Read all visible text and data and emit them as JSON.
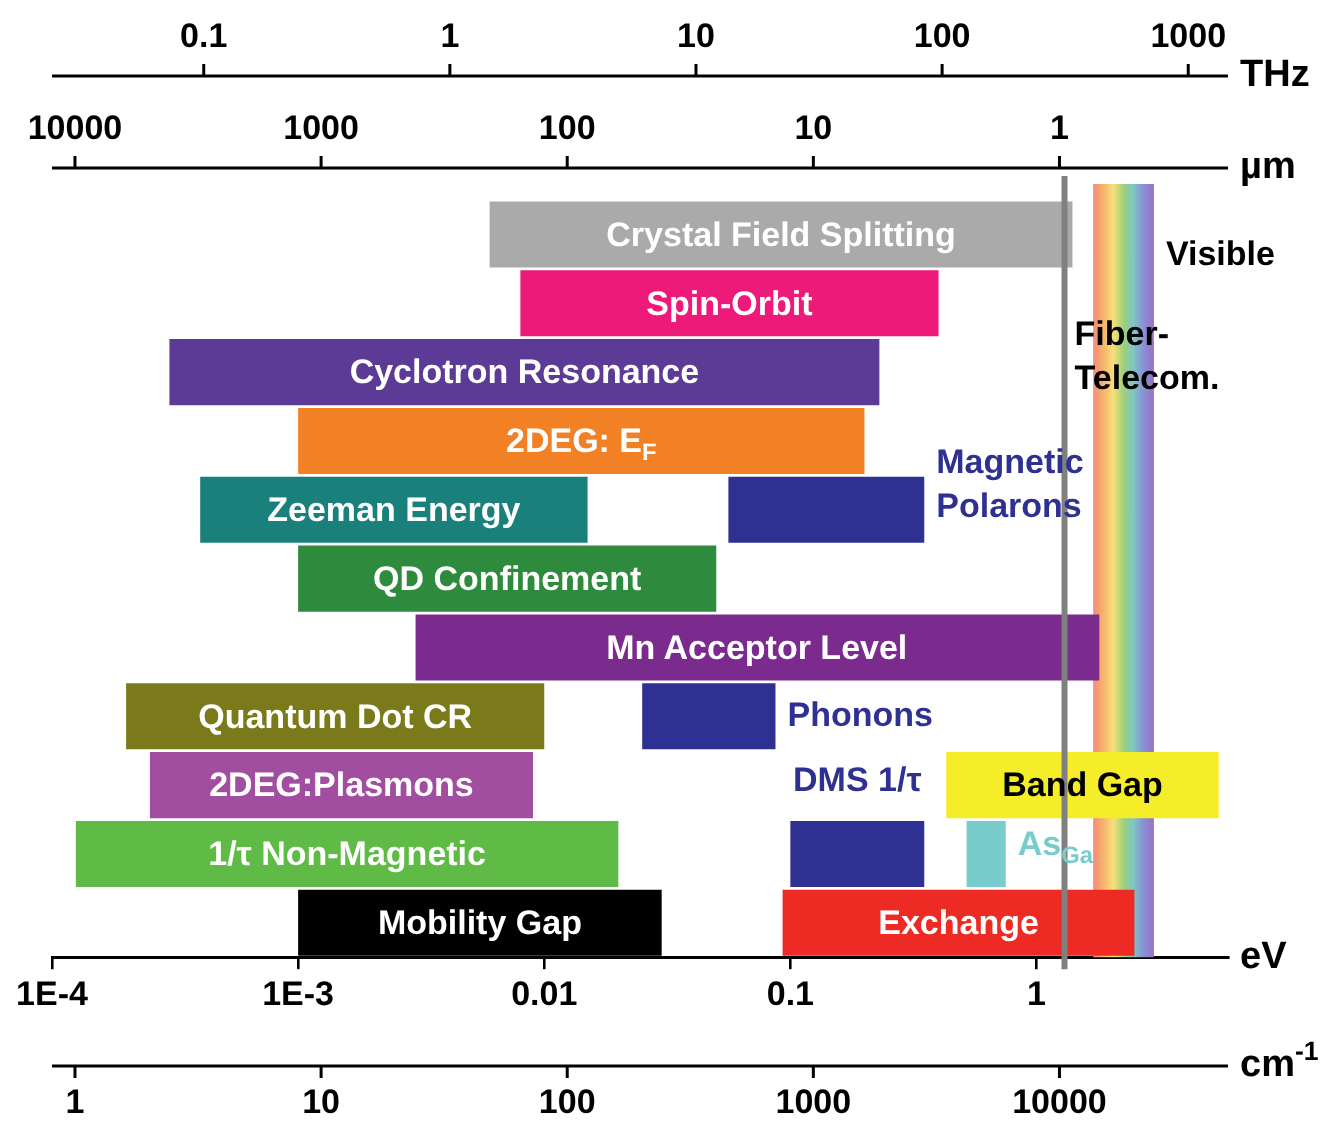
{
  "chart_data": {
    "type": "bar",
    "orientation": "horizontal",
    "log": "x",
    "legend": false,
    "grid": false,
    "tick_labels": "x",
    "categories": [
      null,
      null,
      null,
      null,
      null,
      null,
      null,
      null,
      null,
      null,
      null
    ],
    "xlabel": "eV",
    "xlim": [
      0.0001,
      6
    ],
    "xticks": [
      {
        "value": 0.0001,
        "label": "1E-4"
      },
      {
        "value": 0.001,
        "label": "1E-3"
      },
      0.01,
      0.1,
      1
    ],
    "series": [
      {
        "name": "Crystal Field Splitting",
        "color": "#aaaaaa",
        "base": [
          0.006,
          null,
          null,
          null,
          null,
          null,
          null,
          null,
          null,
          null,
          null
        ],
        "values": [
          1.394,
          null,
          null,
          null,
          null,
          null,
          null,
          null,
          null,
          null,
          null
        ]
      },
      {
        "name": "Spin-Orbit",
        "color": "#ee1a7a",
        "base": [
          null,
          0.008,
          null,
          null,
          null,
          null,
          null,
          null,
          null,
          null,
          null
        ],
        "values": [
          null,
          0.392,
          null,
          null,
          null,
          null,
          null,
          null,
          null,
          null,
          null
        ]
      },
      {
        "name": "Cyclotron Resonance",
        "color": "#5c3b96",
        "base": [
          null,
          null,
          0.0003,
          null,
          null,
          null,
          null,
          null,
          null,
          null,
          null
        ],
        "values": [
          null,
          null,
          0.2297,
          null,
          null,
          null,
          null,
          null,
          null,
          null,
          null
        ]
      },
      {
        "name": "2DEG: E$_{F}$",
        "color": "#f28024",
        "base": [
          null,
          null,
          null,
          0.001,
          null,
          null,
          null,
          null,
          null,
          null,
          null
        ],
        "values": [
          null,
          null,
          null,
          0.199,
          null,
          null,
          null,
          null,
          null,
          null,
          null
        ]
      },
      {
        "name": "Zeeman Energy",
        "color": "#1a807c",
        "base": [
          null,
          null,
          null,
          null,
          0.0004,
          null,
          null,
          null,
          null,
          null,
          null
        ],
        "values": [
          null,
          null,
          null,
          null,
          0.0146,
          null,
          null,
          null,
          null,
          null,
          null
        ]
      },
      {
        "name": "Magnetic Polarons",
        "color": "#2e3192",
        "base": [
          null,
          null,
          null,
          null,
          0.056,
          null,
          null,
          null,
          null,
          null,
          null
        ],
        "values": [
          null,
          null,
          null,
          null,
          0.294,
          null,
          null,
          null,
          null,
          null,
          null
        ]
      },
      {
        "name": "QD Confinement",
        "color": "#2e8b3e",
        "base": [
          null,
          null,
          null,
          null,
          null,
          0.001,
          null,
          null,
          null,
          null,
          null
        ],
        "values": [
          null,
          null,
          null,
          null,
          null,
          0.049,
          null,
          null,
          null,
          null,
          null
        ]
      },
      {
        "name": "Mn Acceptor Level",
        "color": "#7b2b8e",
        "base": [
          null,
          null,
          null,
          null,
          null,
          null,
          0.003,
          null,
          null,
          null,
          null
        ],
        "values": [
          null,
          null,
          null,
          null,
          null,
          null,
          1.797,
          null,
          null,
          null,
          null
        ]
      },
      {
        "name": "Quantum Dot CR",
        "color": "#7b7a1a",
        "base": [
          null,
          null,
          null,
          null,
          null,
          null,
          null,
          0.0002,
          null,
          null,
          null
        ],
        "values": [
          null,
          null,
          null,
          null,
          null,
          null,
          null,
          0.0098,
          null,
          null,
          null
        ]
      },
      {
        "name": "Phonons",
        "color": "#2e3192",
        "base": [
          null,
          null,
          null,
          null,
          null,
          null,
          null,
          0.025,
          null,
          null,
          null
        ],
        "values": [
          null,
          null,
          null,
          null,
          null,
          null,
          null,
          0.062,
          null,
          null,
          null
        ]
      },
      {
        "name": "2DEG:Plasmons",
        "color": "#a24ea0",
        "base": [
          null,
          null,
          null,
          null,
          null,
          null,
          null,
          null,
          0.00025,
          null,
          null
        ],
        "values": [
          null,
          null,
          null,
          null,
          null,
          null,
          null,
          null,
          0.00875,
          null,
          null
        ]
      },
      {
        "name": "Band Gap",
        "color": "#f5ec2a",
        "base": [
          null,
          null,
          null,
          null,
          null,
          null,
          null,
          null,
          0.43,
          null,
          null
        ],
        "values": [
          null,
          null,
          null,
          null,
          null,
          null,
          null,
          null,
          5.07,
          null,
          null
        ]
      },
      {
        "name": "1/τ Non-Magnetic",
        "color": "#5fbb46",
        "base": [
          null,
          null,
          null,
          null,
          null,
          null,
          null,
          null,
          null,
          0.000125,
          null
        ],
        "values": [
          null,
          null,
          null,
          null,
          null,
          null,
          null,
          null,
          null,
          0.019875,
          null
        ]
      },
      {
        "name": "DMS 1/τ",
        "color": "#2e3192",
        "base": [
          null,
          null,
          null,
          null,
          null,
          null,
          null,
          null,
          null,
          0.1,
          null
        ],
        "values": [
          null,
          null,
          null,
          null,
          null,
          null,
          null,
          null,
          null,
          0.25,
          null
        ]
      },
      {
        "name": "As$_{Ga}$",
        "color": "#78cccc",
        "base": [
          null,
          null,
          null,
          null,
          null,
          null,
          null,
          null,
          null,
          0.52,
          null
        ],
        "values": [
          null,
          null,
          null,
          null,
          null,
          null,
          null,
          null,
          null,
          0.23,
          null
        ]
      },
      {
        "name": "Mobility Gap",
        "color": "#000000",
        "base": [
          null,
          null,
          null,
          null,
          null,
          null,
          null,
          null,
          null,
          null,
          0.001
        ],
        "values": [
          null,
          null,
          null,
          null,
          null,
          null,
          null,
          null,
          null,
          null,
          0.029
        ]
      },
      {
        "name": "Exchange",
        "color": "#ed2a24",
        "base": [
          null,
          null,
          null,
          null,
          null,
          null,
          null,
          null,
          null,
          null,
          0.093
        ],
        "values": [
          null,
          null,
          null,
          null,
          null,
          null,
          null,
          null,
          null,
          null,
          2.407
        ]
      }
    ],
    "annotations": [
      "THz",
      "0.1",
      "1",
      "10",
      "100",
      "1000",
      "µm",
      "10000",
      "1000",
      "100",
      "10",
      "1",
      "cm$^{-1}$",
      "1",
      "10",
      "100",
      "1000",
      "10000"
    ],
    "bands": [
      {
        "axis": "x",
        "from": 1.7,
        "to": 3.0,
        "label": "Visible"
      }
    ],
    "ref_lines": [
      {
        "axis": "x",
        "value": 1.3,
        "label": "Fiber-Telecom.",
        "color": "#808080"
      }
    ]
  }
}
